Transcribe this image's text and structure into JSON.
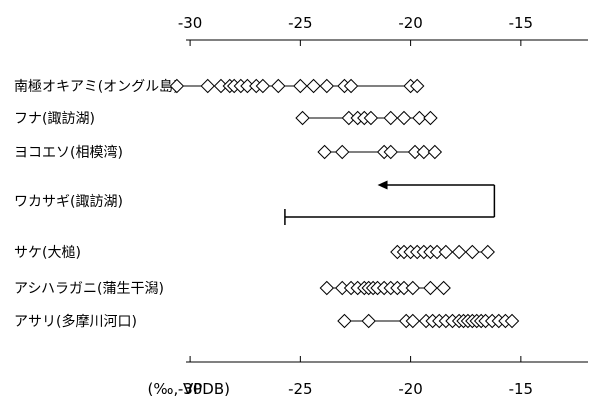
{
  "chart_data": {
    "type": "scatter",
    "unit_label": "(‰, VPDB)",
    "xlim": [
      -32,
      -15
    ],
    "x_ticks": [
      "-30",
      "-25",
      "-20",
      "-15"
    ],
    "x_tick_values": [
      -30,
      -25,
      -20,
      -15
    ],
    "series": [
      {
        "name": "南極オキアミ(オングル島)",
        "range": [
          -30.6,
          -19.7
        ],
        "points": [
          -30.6,
          -29.2,
          -28.6,
          -28.2,
          -28.0,
          -27.7,
          -27.4,
          -27.0,
          -26.7,
          -26.0,
          -25.0,
          -24.4,
          -23.8,
          -23.0,
          -22.7,
          -20.0,
          -19.7
        ]
      },
      {
        "name": "フナ(諏訪湖)",
        "range": [
          -24.9,
          -19.1
        ],
        "points": [
          -24.9,
          -22.8,
          -22.4,
          -22.1,
          -21.8,
          -20.9,
          -20.3,
          -19.6,
          -19.1
        ]
      },
      {
        "name": "ヨコエソ(相模湾)",
        "range": [
          -23.9,
          -18.9
        ],
        "points": [
          -23.9,
          -23.1,
          -21.2,
          -20.9,
          -19.8,
          -19.4,
          -18.9
        ]
      },
      {
        "name": "ワカサギ(諏訪湖)",
        "type": "arrow",
        "arrow_from": -16.2,
        "arrow_to": -21.5,
        "bracket_left": -25.7,
        "bracket_right": -16.2
      },
      {
        "name": "サケ(大槌)",
        "range": [
          -20.6,
          -16.5
        ],
        "points": [
          -20.6,
          -20.3,
          -20.0,
          -19.7,
          -19.4,
          -19.1,
          -18.8,
          -18.4,
          -17.8,
          -17.2,
          -16.5
        ]
      },
      {
        "name": "アシハラガニ(蒲生干潟)",
        "range": [
          -23.8,
          -18.5
        ],
        "points": [
          -23.8,
          -23.1,
          -22.7,
          -22.4,
          -22.1,
          -21.9,
          -21.7,
          -21.5,
          -21.2,
          -20.9,
          -20.6,
          -20.3,
          -19.9,
          -19.1,
          -18.5
        ]
      },
      {
        "name": "アサリ(多摩川河口)",
        "range": [
          -23.0,
          -15.4
        ],
        "points": [
          -23.0,
          -21.9,
          -20.2,
          -19.9,
          -19.3,
          -19.0,
          -18.7,
          -18.4,
          -18.1,
          -17.8,
          -17.6,
          -17.4,
          -17.2,
          -17.0,
          -16.8,
          -16.6,
          -16.3,
          -16.0,
          -15.7,
          -15.4
        ]
      }
    ]
  }
}
